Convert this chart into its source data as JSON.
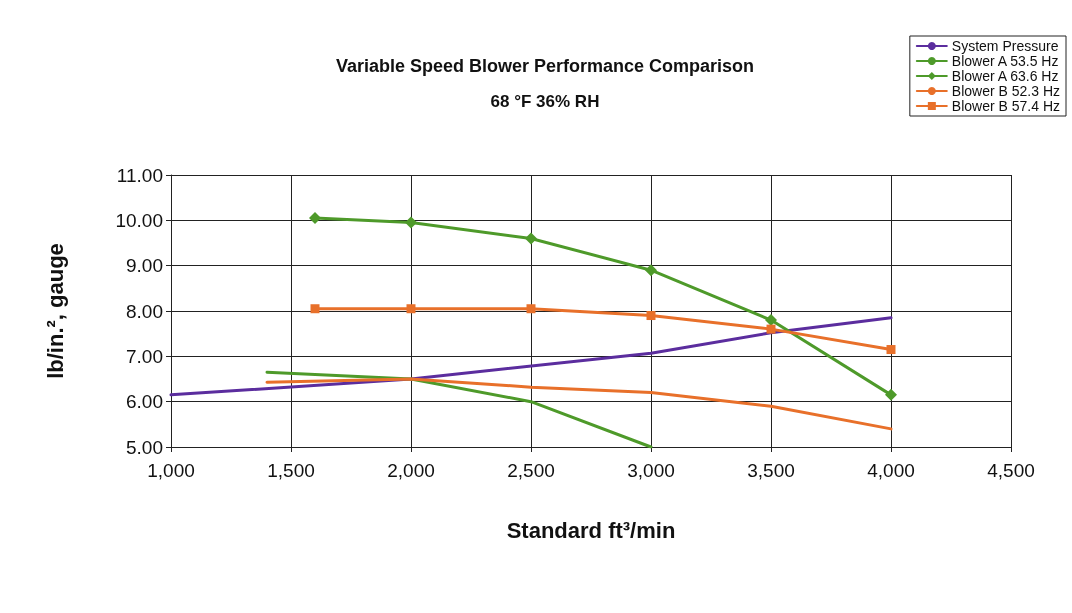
{
  "chart_data": {
    "type": "line",
    "title": "Variable Speed Blower Performance Comparison",
    "subtitle": "68 °F 36% RH",
    "xlabel": "Standard ft³/min",
    "ylabel": "lb/in.², gauge",
    "series": [
      {
        "name": "System Pressure",
        "color": "#5b2d9e",
        "marker": "none",
        "x": [
          1000,
          2000,
          3000,
          3500,
          4000
        ],
        "values": [
          6.15,
          6.5,
          7.07,
          7.52,
          7.85
        ]
      },
      {
        "name": "Blower A 53.5 Hz",
        "color": "#4e9a2a",
        "marker": "none",
        "x": [
          1400,
          2000,
          2500,
          3000
        ],
        "values": [
          6.65,
          6.5,
          6.0,
          5.0
        ]
      },
      {
        "name": "Blower A 63.6 Hz",
        "color": "#4e9a2a",
        "marker": "diamond",
        "x": [
          1600,
          2000,
          2500,
          3000,
          3500,
          4000
        ],
        "values": [
          10.05,
          9.95,
          9.6,
          8.9,
          7.8,
          6.15
        ]
      },
      {
        "name": "Blower B 52.3 Hz",
        "color": "#e8702a",
        "marker": "none",
        "x": [
          1400,
          2000,
          2500,
          3000,
          3500,
          4000
        ],
        "values": [
          6.43,
          6.5,
          6.32,
          6.2,
          5.9,
          5.4
        ]
      },
      {
        "name": "Blower B 57.4 Hz",
        "color": "#e8702a",
        "marker": "square",
        "x": [
          1600,
          2000,
          2500,
          3000,
          3500,
          4000
        ],
        "values": [
          8.05,
          8.05,
          8.05,
          7.9,
          7.6,
          7.15
        ]
      }
    ],
    "xlim": [
      1000,
      4500
    ],
    "xticks": [
      {
        "value": 1000,
        "label": "1,000"
      },
      {
        "value": 1500,
        "label": "1,500"
      },
      {
        "value": 2000,
        "label": "2,000"
      },
      {
        "value": 2500,
        "label": "2,500"
      },
      {
        "value": 3000,
        "label": "3,000"
      },
      {
        "value": 3500,
        "label": "3,500"
      },
      {
        "value": 4000,
        "label": "4,000"
      },
      {
        "value": 4500,
        "label": "4,500"
      }
    ],
    "ylim": [
      5,
      11
    ],
    "yticks": [
      {
        "value": 5,
        "label": "5.00"
      },
      {
        "value": 6,
        "label": "6.00"
      },
      {
        "value": 7,
        "label": "7.00"
      },
      {
        "value": 8,
        "label": "8.00"
      },
      {
        "value": 9,
        "label": "9.00"
      },
      {
        "value": 10,
        "label": "10.00"
      },
      {
        "value": 11,
        "label": "11.00"
      }
    ],
    "grid": true,
    "legend": "top right",
    "line_style": "solid"
  }
}
